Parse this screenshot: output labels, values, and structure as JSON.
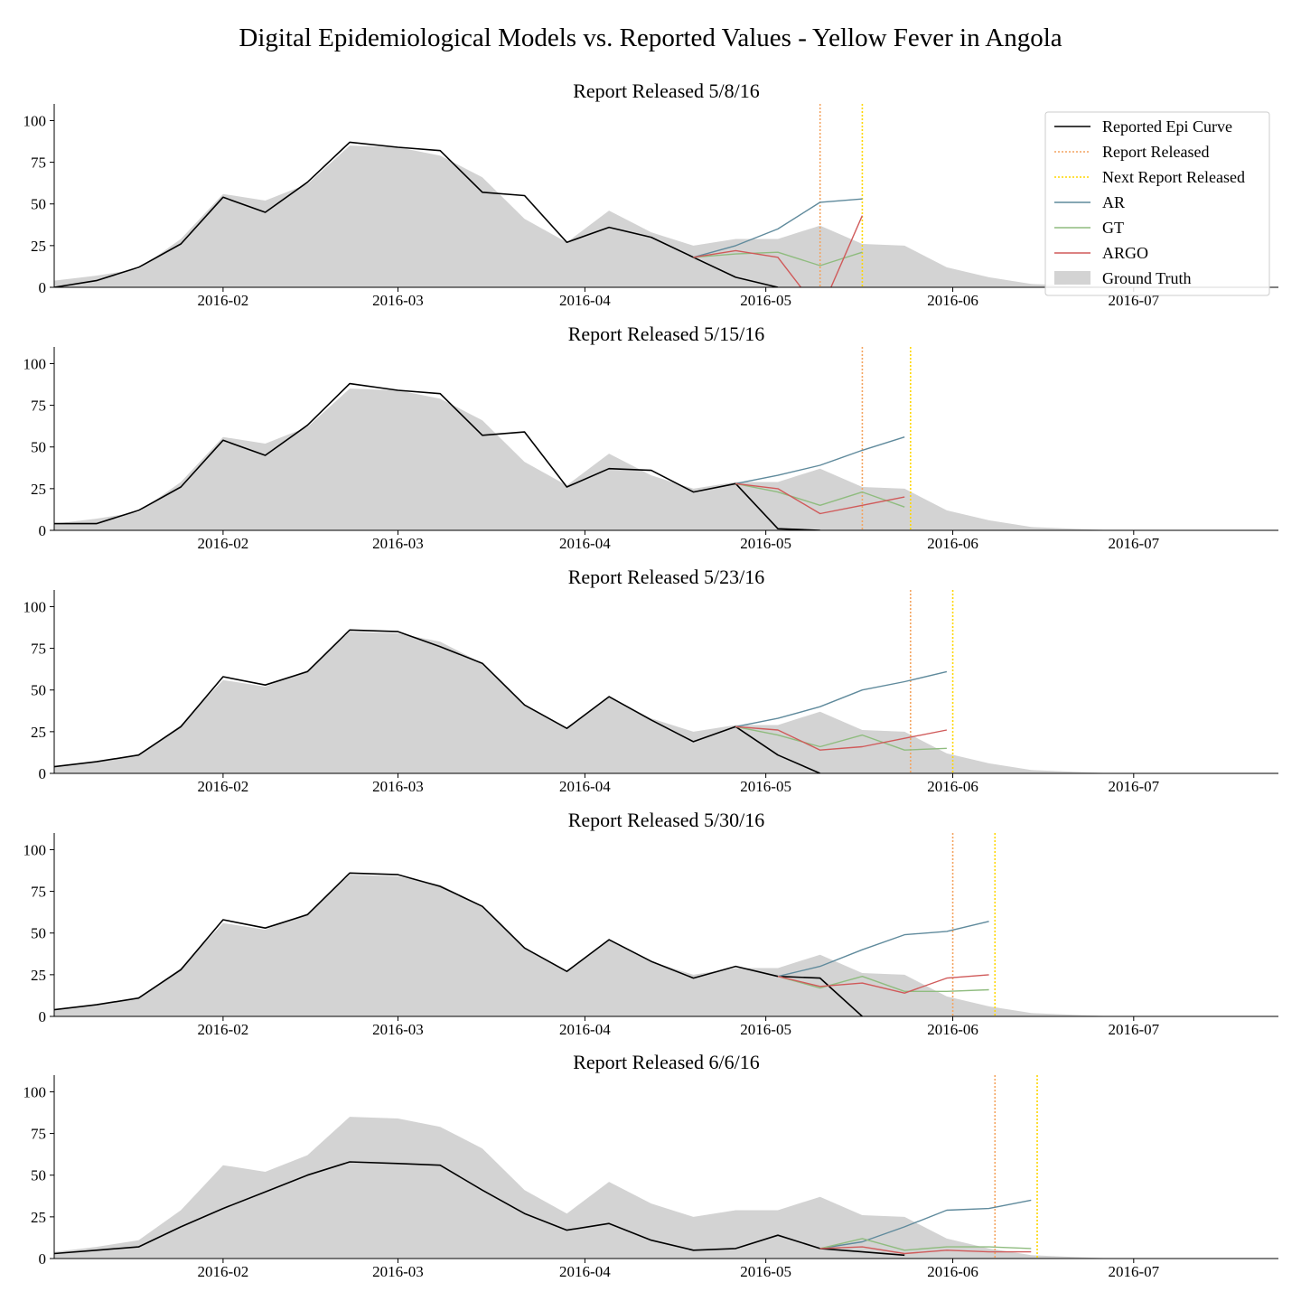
{
  "suptitle": "Digital Epidemiological Models vs. Reported Values - Yellow Fever in Angola",
  "chart_data": {
    "type": "line",
    "x_tick_labels": [
      "2016-02",
      "2016-03",
      "2016-04",
      "2016-05",
      "2016-06",
      "2016-07"
    ],
    "y_ticks": [
      0,
      25,
      50,
      75,
      100
    ],
    "ylim": [
      0,
      110
    ],
    "xlim": [
      "2016-01-04",
      "2016-07-25"
    ],
    "grid": false,
    "legend": {
      "placement": "top-right",
      "entries": [
        "Reported Epi Curve",
        "Report Released",
        "Next Report Released",
        "AR",
        "GT",
        "ARGO",
        "Ground Truth"
      ]
    },
    "colors": {
      "reported": "#000000",
      "report_released": "#f4a460",
      "next_report_released": "#ffd700",
      "ar": "#5f8a9c",
      "gt": "#8fbc7f",
      "argo": "#d05a5a",
      "ground_truth": "#d3d3d3"
    },
    "ground_truth": {
      "dates": [
        "2016-01-04",
        "2016-01-11",
        "2016-01-18",
        "2016-01-25",
        "2016-02-01",
        "2016-02-08",
        "2016-02-15",
        "2016-02-22",
        "2016-03-01",
        "2016-03-08",
        "2016-03-15",
        "2016-03-22",
        "2016-03-29",
        "2016-04-05",
        "2016-04-12",
        "2016-04-19",
        "2016-04-26",
        "2016-05-03",
        "2016-05-10",
        "2016-05-17",
        "2016-05-24",
        "2016-05-31",
        "2016-06-07",
        "2016-06-14",
        "2016-06-21",
        "2016-06-28",
        "2016-07-05",
        "2016-07-12",
        "2016-07-19",
        "2016-07-25"
      ],
      "values": [
        4,
        7,
        11,
        29,
        56,
        52,
        62,
        85,
        84,
        79,
        66,
        41,
        27,
        46,
        33,
        25,
        29,
        29,
        37,
        26,
        25,
        12,
        6,
        2,
        1,
        0,
        0,
        0,
        0,
        0
      ]
    },
    "panels": [
      {
        "title": "Report Released 5/8/16",
        "report_released": "2016-05-10",
        "next_report_released": "2016-05-17",
        "reported": {
          "dates": [
            "2016-01-04",
            "2016-01-11",
            "2016-01-18",
            "2016-01-25",
            "2016-02-01",
            "2016-02-08",
            "2016-02-15",
            "2016-02-22",
            "2016-03-01",
            "2016-03-08",
            "2016-03-15",
            "2016-03-22",
            "2016-03-29",
            "2016-04-05",
            "2016-04-12",
            "2016-04-19",
            "2016-04-26",
            "2016-05-03"
          ],
          "values": [
            0,
            4,
            12,
            26,
            54,
            45,
            63,
            87,
            84,
            82,
            57,
            55,
            27,
            36,
            30,
            18,
            6,
            0
          ]
        },
        "ar": {
          "dates": [
            "2016-04-19",
            "2016-04-26",
            "2016-05-03",
            "2016-05-10",
            "2016-05-17"
          ],
          "values": [
            18,
            25,
            35,
            51,
            53
          ]
        },
        "gt": {
          "dates": [
            "2016-04-19",
            "2016-04-26",
            "2016-05-03",
            "2016-05-10",
            "2016-05-17"
          ],
          "values": [
            18,
            20,
            21,
            13,
            21
          ]
        },
        "argo": {
          "dates": [
            "2016-04-19",
            "2016-04-26",
            "2016-05-03",
            "2016-05-10",
            "2016-05-17"
          ],
          "values": [
            18,
            22,
            18,
            -15,
            43
          ]
        }
      },
      {
        "title": "Report Released 5/15/16",
        "report_released": "2016-05-17",
        "next_report_released": "2016-05-25",
        "reported": {
          "dates": [
            "2016-01-04",
            "2016-01-11",
            "2016-01-18",
            "2016-01-25",
            "2016-02-01",
            "2016-02-08",
            "2016-02-15",
            "2016-02-22",
            "2016-03-01",
            "2016-03-08",
            "2016-03-15",
            "2016-03-22",
            "2016-03-29",
            "2016-04-05",
            "2016-04-12",
            "2016-04-19",
            "2016-04-26",
            "2016-05-03",
            "2016-05-10"
          ],
          "values": [
            4,
            4,
            12,
            26,
            54,
            45,
            63,
            88,
            84,
            82,
            57,
            59,
            26,
            37,
            36,
            23,
            28,
            1,
            0
          ]
        },
        "ar": {
          "dates": [
            "2016-04-26",
            "2016-05-03",
            "2016-05-10",
            "2016-05-17",
            "2016-05-24"
          ],
          "values": [
            28,
            33,
            39,
            48,
            56
          ]
        },
        "gt": {
          "dates": [
            "2016-04-26",
            "2016-05-03",
            "2016-05-10",
            "2016-05-17",
            "2016-05-24"
          ],
          "values": [
            28,
            23,
            15,
            23,
            14
          ]
        },
        "argo": {
          "dates": [
            "2016-04-26",
            "2016-05-03",
            "2016-05-10",
            "2016-05-17",
            "2016-05-24"
          ],
          "values": [
            28,
            25,
            10,
            15,
            20
          ]
        }
      },
      {
        "title": "Report Released 5/23/16",
        "report_released": "2016-05-25",
        "next_report_released": "2016-06-01",
        "reported": {
          "dates": [
            "2016-01-04",
            "2016-01-11",
            "2016-01-18",
            "2016-01-25",
            "2016-02-01",
            "2016-02-08",
            "2016-02-15",
            "2016-02-22",
            "2016-03-01",
            "2016-03-08",
            "2016-03-15",
            "2016-03-22",
            "2016-03-29",
            "2016-04-05",
            "2016-04-12",
            "2016-04-19",
            "2016-04-26",
            "2016-05-03",
            "2016-05-10"
          ],
          "values": [
            4,
            7,
            11,
            28,
            58,
            53,
            61,
            86,
            85,
            76,
            66,
            41,
            27,
            46,
            32,
            19,
            28,
            11,
            0
          ]
        },
        "ar": {
          "dates": [
            "2016-04-26",
            "2016-05-03",
            "2016-05-10",
            "2016-05-17",
            "2016-05-24",
            "2016-05-31"
          ],
          "values": [
            28,
            33,
            40,
            50,
            55,
            61
          ]
        },
        "gt": {
          "dates": [
            "2016-04-26",
            "2016-05-03",
            "2016-05-10",
            "2016-05-17",
            "2016-05-24",
            "2016-05-31"
          ],
          "values": [
            28,
            23,
            16,
            23,
            14,
            15
          ]
        },
        "argo": {
          "dates": [
            "2016-04-26",
            "2016-05-03",
            "2016-05-10",
            "2016-05-17",
            "2016-05-24",
            "2016-05-31"
          ],
          "values": [
            28,
            26,
            14,
            16,
            21,
            26
          ]
        }
      },
      {
        "title": "Report Released 5/30/16",
        "report_released": "2016-06-01",
        "next_report_released": "2016-06-08",
        "reported": {
          "dates": [
            "2016-01-04",
            "2016-01-11",
            "2016-01-18",
            "2016-01-25",
            "2016-02-01",
            "2016-02-08",
            "2016-02-15",
            "2016-02-22",
            "2016-03-01",
            "2016-03-08",
            "2016-03-15",
            "2016-03-22",
            "2016-03-29",
            "2016-04-05",
            "2016-04-12",
            "2016-04-19",
            "2016-04-26",
            "2016-05-03",
            "2016-05-10",
            "2016-05-17"
          ],
          "values": [
            4,
            7,
            11,
            28,
            58,
            53,
            61,
            86,
            85,
            78,
            66,
            41,
            27,
            46,
            33,
            23,
            30,
            24,
            23,
            0
          ]
        },
        "ar": {
          "dates": [
            "2016-05-03",
            "2016-05-10",
            "2016-05-17",
            "2016-05-24",
            "2016-05-31",
            "2016-06-07"
          ],
          "values": [
            24,
            30,
            40,
            49,
            51,
            57
          ]
        },
        "gt": {
          "dates": [
            "2016-05-03",
            "2016-05-10",
            "2016-05-17",
            "2016-05-24",
            "2016-05-31",
            "2016-06-07"
          ],
          "values": [
            24,
            17,
            24,
            15,
            15,
            16
          ]
        },
        "argo": {
          "dates": [
            "2016-05-03",
            "2016-05-10",
            "2016-05-17",
            "2016-05-24",
            "2016-05-31",
            "2016-06-07"
          ],
          "values": [
            24,
            18,
            20,
            14,
            23,
            25
          ]
        }
      },
      {
        "title": "Report Released 6/6/16",
        "report_released": "2016-06-08",
        "next_report_released": "2016-06-15",
        "reported": {
          "dates": [
            "2016-01-04",
            "2016-01-11",
            "2016-01-18",
            "2016-01-25",
            "2016-02-01",
            "2016-02-08",
            "2016-02-15",
            "2016-02-22",
            "2016-03-01",
            "2016-03-08",
            "2016-03-15",
            "2016-03-22",
            "2016-03-29",
            "2016-04-05",
            "2016-04-12",
            "2016-04-19",
            "2016-04-26",
            "2016-05-03",
            "2016-05-10",
            "2016-05-17",
            "2016-05-24"
          ],
          "values": [
            3,
            5,
            7,
            19,
            30,
            40,
            50,
            58,
            57,
            56,
            41,
            27,
            17,
            21,
            11,
            5,
            6,
            14,
            6,
            4,
            2
          ]
        },
        "ar": {
          "dates": [
            "2016-05-10",
            "2016-05-17",
            "2016-05-24",
            "2016-05-31",
            "2016-06-07",
            "2016-06-14"
          ],
          "values": [
            6,
            10,
            19,
            29,
            30,
            35
          ]
        },
        "gt": {
          "dates": [
            "2016-05-10",
            "2016-05-17",
            "2016-05-24",
            "2016-05-31",
            "2016-06-07",
            "2016-06-14"
          ],
          "values": [
            6,
            12,
            5,
            7,
            7,
            6
          ]
        },
        "argo": {
          "dates": [
            "2016-05-10",
            "2016-05-17",
            "2016-05-24",
            "2016-05-31",
            "2016-06-07",
            "2016-06-14"
          ],
          "values": [
            6,
            7,
            3,
            5,
            4,
            4
          ]
        }
      }
    ]
  }
}
